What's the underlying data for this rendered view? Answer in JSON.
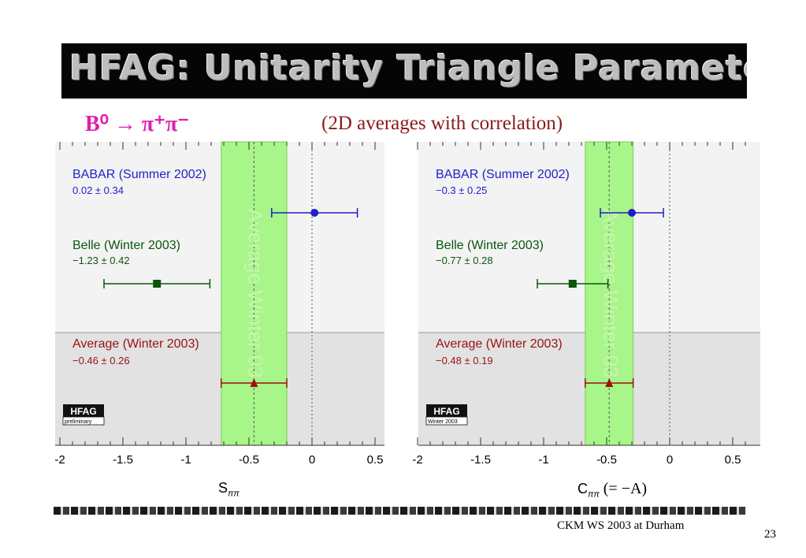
{
  "banner": {
    "title": "HFAG: Unitarity Triangle Parameters"
  },
  "decay_label": "B⁰ → π⁺π⁻",
  "subtitle": "(2D averages with correlation)",
  "footer": {
    "text": "CKM WS 2003 at Durham",
    "page": "23"
  },
  "colors": {
    "babar": "#1f1fc8",
    "belle": "#0b560b",
    "average": "#9b1111",
    "band": "#a8f589",
    "decay": "#e11db0"
  },
  "chart_data": [
    {
      "type": "scatter",
      "xlabel_main": "S",
      "xlabel_sub": "ππ",
      "xlabel_extra": "",
      "xlim": [
        -2,
        0.6
      ],
      "ticks": [
        "-2",
        "-1.5",
        "-1",
        "-0.5",
        "0",
        "0.5"
      ],
      "tick_values": [
        -2,
        -1.5,
        -1,
        -0.5,
        0,
        0.5
      ],
      "band_label": "Average Winter 03",
      "logo": "HFAG",
      "logo_sub": "preliminary",
      "band": {
        "center": -0.46,
        "low": -0.72,
        "high": -0.2
      },
      "measurements": [
        {
          "key": "babar",
          "label": "BABAR (Summer 2002)",
          "value_text": "0.02 ± 0.34",
          "x": 0.02,
          "xerr_low": -0.32,
          "xerr_high": 0.36,
          "marker": "circle"
        },
        {
          "key": "belle",
          "label": "Belle (Winter 2003)",
          "value_text": "−1.23 ± 0.42",
          "x": -1.23,
          "xerr_low": -1.65,
          "xerr_high": -0.81,
          "marker": "square"
        },
        {
          "key": "average",
          "label": "Average (Winter 2003)",
          "value_text": "−0.46 ± 0.26",
          "x": -0.46,
          "xerr_low": -0.72,
          "xerr_high": -0.2,
          "marker": "triangle"
        }
      ]
    },
    {
      "type": "scatter",
      "xlabel_main": "C",
      "xlabel_sub": "ππ",
      "xlabel_extra": "(= −A)",
      "xlim": [
        -2,
        0.7
      ],
      "ticks": [
        "-2",
        "-1.5",
        "-1",
        "-0.5",
        "0",
        "0.5"
      ],
      "tick_values": [
        -2,
        -1.5,
        -1,
        -0.5,
        0,
        0.5
      ],
      "band_label": "Average Winter 03",
      "logo": "HFAG",
      "logo_sub": "Winter 2003",
      "band": {
        "center": -0.48,
        "low": -0.67,
        "high": -0.29
      },
      "measurements": [
        {
          "key": "babar",
          "label": "BABAR (Summer 2002)",
          "value_text": "−0.3 ± 0.25",
          "x": -0.3,
          "xerr_low": -0.55,
          "xerr_high": -0.05,
          "marker": "circle"
        },
        {
          "key": "belle",
          "label": "Belle (Winter 2003)",
          "value_text": "−0.77 ± 0.28",
          "x": -0.77,
          "xerr_low": -1.05,
          "xerr_high": -0.49,
          "marker": "square"
        },
        {
          "key": "average",
          "label": "Average (Winter 2003)",
          "value_text": "−0.48 ± 0.19",
          "x": -0.48,
          "xerr_low": -0.67,
          "xerr_high": -0.29,
          "marker": "triangle"
        }
      ]
    }
  ]
}
